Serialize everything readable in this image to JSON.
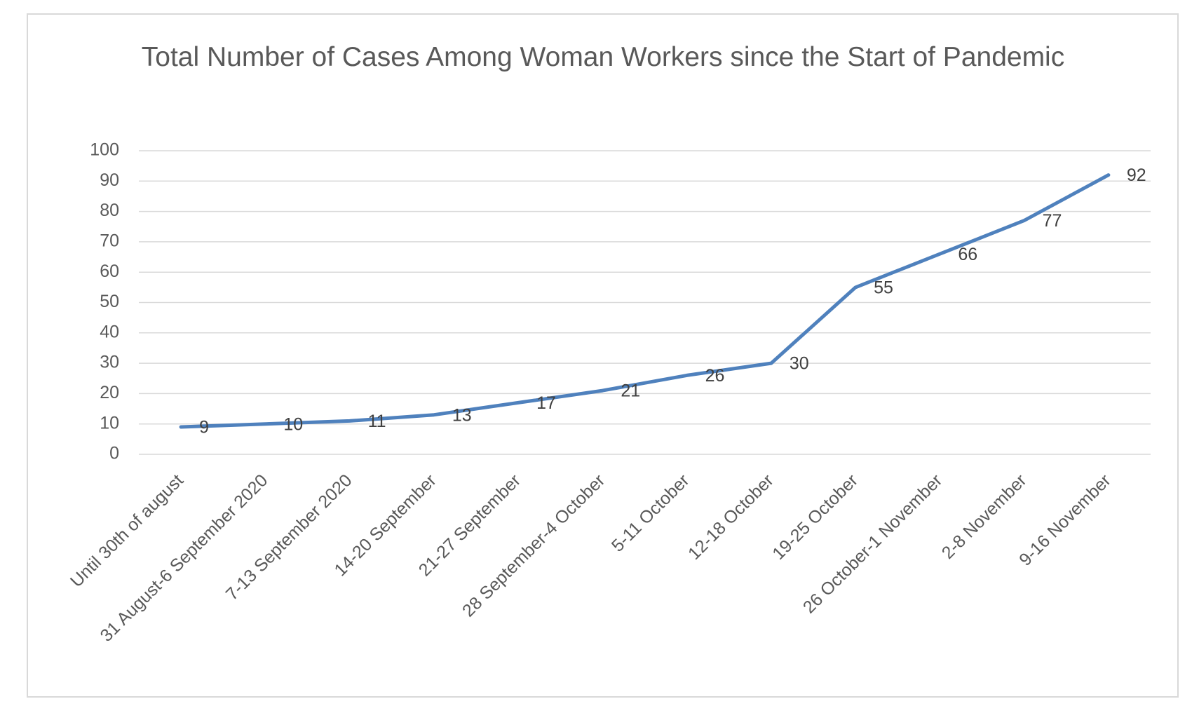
{
  "chart_data": {
    "type": "line",
    "title": "Total Number of Cases Among Woman Workers since the Start of Pandemic",
    "categories": [
      "Until 30th of august",
      "31 August-6 September 2020",
      "7-13 September 2020",
      "14-20 September",
      "21-27 September",
      "28 September-4 October",
      "5-11 October",
      "12-18 October",
      "19-25 October",
      "26 October-1 November",
      "2-8 November",
      "9-16 November"
    ],
    "values": [
      9,
      10,
      11,
      13,
      17,
      21,
      26,
      30,
      55,
      66,
      77,
      92
    ],
    "color": "#4f81bd",
    "ylim": [
      0,
      100
    ],
    "yticks": [
      0,
      10,
      20,
      30,
      40,
      50,
      60,
      70,
      80,
      90,
      100
    ],
    "grid": true
  }
}
